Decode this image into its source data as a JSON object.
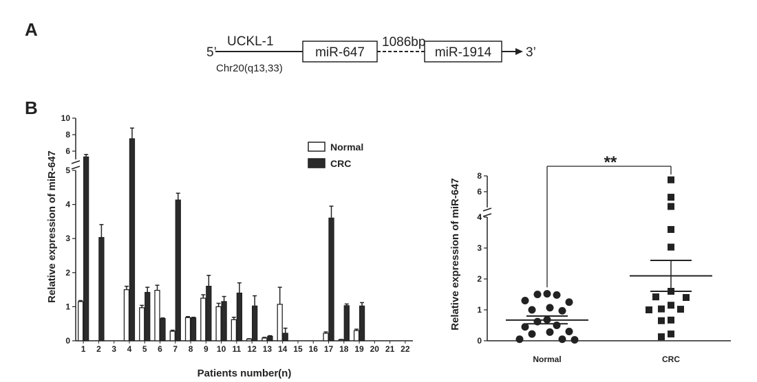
{
  "panels": {
    "a_label": "A",
    "b_label": "B"
  },
  "gene_map": {
    "five_prime": "5’",
    "three_prime": "3’",
    "host_gene": "UCKL-1",
    "locus": "Chr20(q13,33)",
    "mir_a": "miR-647",
    "gap": "1086bp",
    "mir_b": "miR-1914"
  },
  "chart_data": [
    {
      "type": "bar",
      "ylabel": "Relative expression of miR-647",
      "xlabel": "Patients number(n)",
      "axis_break": {
        "lower_range": [
          0,
          5
        ],
        "upper_range": [
          5,
          10
        ]
      },
      "y_ticks_lower": [
        "0",
        "1",
        "2",
        "3",
        "4",
        "5"
      ],
      "y_ticks_upper": [
        "6",
        "8",
        "10"
      ],
      "categories": [
        "1",
        "2",
        "3",
        "4",
        "5",
        "6",
        "7",
        "8",
        "9",
        "10",
        "11",
        "12",
        "13",
        "14",
        "15",
        "16",
        "17",
        "18",
        "19",
        "20",
        "21",
        "22"
      ],
      "legend": {
        "placement": "top-right"
      },
      "series": [
        {
          "name": "Normal",
          "color": "#ffffff",
          "values": [
            1.15,
            0,
            0,
            1.5,
            0.97,
            1.48,
            0.28,
            0.68,
            1.25,
            1.0,
            0.62,
            0.05,
            0.08,
            1.07,
            0,
            0,
            0.22,
            0.03,
            0.3,
            0,
            0,
            0
          ],
          "errors": [
            0.03,
            0,
            0,
            0.1,
            0.07,
            0.15,
            0.03,
            0.03,
            0.1,
            0.1,
            0.07,
            0.01,
            0.02,
            0.5,
            0,
            0,
            0.04,
            0.01,
            0.04,
            0,
            0,
            0
          ]
        },
        {
          "name": "CRC",
          "color": "#2b2b2b",
          "values": [
            5.3,
            3.03,
            0,
            7.5,
            1.42,
            0.65,
            4.13,
            0.67,
            1.6,
            1.15,
            1.4,
            1.02,
            0.13,
            0.22,
            0,
            0,
            3.6,
            1.03,
            1.02,
            0,
            0,
            0
          ],
          "errors": [
            0.3,
            0.38,
            0,
            1.3,
            0.15,
            0.02,
            0.2,
            0.02,
            0.32,
            0.15,
            0.3,
            0.3,
            0.02,
            0.15,
            0,
            0,
            0.35,
            0.05,
            0.1,
            0,
            0,
            0
          ]
        }
      ]
    },
    {
      "type": "scatter",
      "ylabel": "Relative expression of miR-647",
      "categories": [
        "Normal",
        "CRC"
      ],
      "axis_break": {
        "lower_range": [
          0,
          4
        ],
        "upper_range": [
          4,
          8
        ]
      },
      "y_ticks_lower": [
        "0",
        "1",
        "2",
        "3",
        "4"
      ],
      "y_ticks_upper": [
        "4",
        "6",
        "8"
      ],
      "significance": "**",
      "groups": [
        {
          "name": "Normal",
          "marker": "circle",
          "points": [
            1.5,
            1.52,
            1.48,
            1.3,
            1.25,
            1.07,
            1.0,
            0.97,
            0.68,
            0.62,
            0.5,
            0.45,
            0.3,
            0.28,
            0.22,
            0.05,
            0.03,
            0.05
          ],
          "mean": 0.67,
          "sem": [
            0.55,
            0.8
          ]
        },
        {
          "name": "CRC",
          "marker": "square",
          "points": [
            7.5,
            5.3,
            4.13,
            3.6,
            3.03,
            1.6,
            1.42,
            1.4,
            1.15,
            1.03,
            1.02,
            1.0,
            0.67,
            0.65,
            0.22,
            0.13
          ],
          "mean": 2.1,
          "sem": [
            1.6,
            2.6
          ]
        }
      ]
    }
  ]
}
